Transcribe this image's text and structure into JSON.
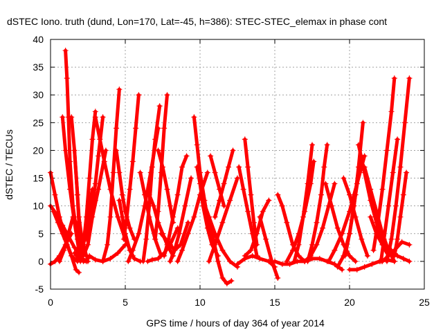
{
  "chart_data": {
    "type": "scatter",
    "title": "dSTEC Iono. truth (dund, Lon=170, Lat=-45, h=386): STEC-STEC_elemax in phase cont",
    "xlabel": "GPS time / hours of day 364 of year 2014",
    "ylabel": "dSTEC  / TECUs",
    "xlim": [
      0,
      25
    ],
    "ylim": [
      -5,
      40
    ],
    "xticks": [
      "0",
      "5",
      "10",
      "15",
      "20",
      "25"
    ],
    "yticks": [
      "-5",
      "0",
      "5",
      "10",
      "15",
      "20",
      "25",
      "30",
      "35",
      "40"
    ],
    "grid": true,
    "legend": "none",
    "marker": "+",
    "color": "#ff0000",
    "series": [
      {
        "x": [
          0.0,
          0.3,
          0.6,
          1.0,
          1.4,
          1.7,
          1.9
        ],
        "y": [
          16,
          12,
          8,
          4,
          1,
          -1.5,
          -2
        ]
      },
      {
        "x": [
          0.0,
          0.4,
          0.8,
          1.2,
          1.6,
          2.1,
          2.5
        ],
        "y": [
          10,
          8.5,
          6.5,
          4.5,
          2.5,
          0.5,
          0
        ]
      },
      {
        "x": [
          0.0,
          0.3,
          0.6,
          1.0,
          1.4
        ],
        "y": [
          -0.5,
          0,
          1,
          3,
          5
        ]
      },
      {
        "x": [
          0.2,
          0.5,
          0.8,
          1.1,
          1.4,
          1.8
        ],
        "y": [
          9,
          7,
          5,
          3,
          1,
          0
        ]
      },
      {
        "x": [
          0.6,
          0.9,
          1.2,
          1.5,
          1.7,
          1.9
        ],
        "y": [
          0,
          2,
          5,
          8,
          7,
          5
        ]
      },
      {
        "x": [
          0.8,
          1.0,
          1.3,
          1.6,
          1.9,
          2.2,
          2.4
        ],
        "y": [
          26,
          20,
          13,
          7,
          2,
          0,
          0
        ]
      },
      {
        "x": [
          1.0,
          1.1,
          1.2,
          1.3,
          1.5,
          1.8,
          2.1
        ],
        "y": [
          38,
          33,
          26,
          18,
          10,
          4,
          1
        ]
      },
      {
        "x": [
          1.4,
          1.6,
          1.8,
          1.9,
          2.1,
          2.4
        ],
        "y": [
          26,
          20,
          12,
          8,
          4,
          1
        ]
      },
      {
        "x": [
          1.6,
          1.8,
          1.9,
          2.0,
          2.2,
          2.5
        ],
        "y": [
          20,
          12,
          7,
          4,
          2,
          0.5
        ]
      },
      {
        "x": [
          1.6,
          1.9,
          2.2,
          2.5,
          2.8,
          3.2,
          3.7
        ],
        "y": [
          1.5,
          0.5,
          1,
          3,
          8,
          13,
          20
        ]
      },
      {
        "x": [
          2.0,
          2.2,
          2.4,
          2.6,
          2.8,
          3.0
        ],
        "y": [
          0,
          3,
          8,
          15,
          22,
          27
        ]
      },
      {
        "x": [
          2.2,
          2.4,
          2.6,
          2.8,
          3.0
        ],
        "y": [
          3,
          6,
          10,
          13,
          11
        ]
      },
      {
        "x": [
          2.4,
          2.6,
          2.8,
          3.0,
          3.2,
          3.5
        ],
        "y": [
          4,
          7,
          10,
          14,
          19,
          26
        ]
      },
      {
        "x": [
          3.0,
          3.3,
          3.6,
          4.0,
          4.5,
          5.0,
          5.5
        ],
        "y": [
          26,
          22,
          18,
          13,
          8,
          4,
          1
        ]
      },
      {
        "x": [
          2.6,
          3.0,
          3.5,
          4.0,
          4.5,
          5.0
        ],
        "y": [
          1,
          0.3,
          0,
          0.5,
          1.5,
          3
        ]
      },
      {
        "x": [
          3.5,
          3.8,
          4.0,
          4.2,
          4.4,
          4.6
        ],
        "y": [
          0,
          3,
          8,
          16,
          24,
          31
        ]
      },
      {
        "x": [
          4.4,
          4.6,
          4.8,
          5.0,
          5.3,
          5.6
        ],
        "y": [
          20,
          16,
          12,
          9,
          6,
          4
        ]
      },
      {
        "x": [
          4.6,
          4.8,
          5.0,
          5.3,
          5.6,
          6.0
        ],
        "y": [
          11,
          8,
          5,
          2,
          0.5,
          0
        ]
      },
      {
        "x": [
          4.9,
          5.1,
          5.3,
          5.5,
          5.7,
          5.9
        ],
        "y": [
          4,
          8,
          13,
          18,
          24,
          30
        ]
      },
      {
        "x": [
          5.2,
          5.5,
          5.9,
          6.3,
          6.7,
          7.2
        ],
        "y": [
          0,
          2,
          5,
          10,
          16,
          24
        ]
      },
      {
        "x": [
          6.0,
          6.3,
          6.6,
          7.0,
          7.4
        ],
        "y": [
          16,
          12,
          8,
          4,
          1
        ]
      },
      {
        "x": [
          6.2,
          6.4,
          6.6,
          6.8,
          7.0,
          7.3
        ],
        "y": [
          0,
          4,
          10,
          17,
          22,
          28
        ]
      },
      {
        "x": [
          6.6,
          6.9,
          7.2,
          7.5,
          7.8,
          8.2
        ],
        "y": [
          12,
          10,
          7,
          5,
          3,
          1
        ]
      },
      {
        "x": [
          6.5,
          6.8,
          7.2,
          7.6,
          8.0,
          8.5
        ],
        "y": [
          0,
          0.3,
          0.5,
          1.5,
          3,
          6
        ]
      },
      {
        "x": [
          7.0,
          7.2,
          7.4,
          7.6,
          7.8
        ],
        "y": [
          4,
          9,
          16,
          24,
          30
        ]
      },
      {
        "x": [
          7.2,
          7.5,
          7.8,
          8.0,
          8.2
        ],
        "y": [
          20,
          17,
          13,
          10,
          7
        ]
      },
      {
        "x": [
          7.4,
          7.7,
          8.0,
          8.3,
          8.7,
          9.2
        ],
        "y": [
          5,
          4,
          3,
          2,
          3,
          7
        ]
      },
      {
        "x": [
          7.6,
          7.9,
          8.2,
          8.5,
          8.8,
          9.1
        ],
        "y": [
          1,
          4,
          8,
          12,
          17,
          19
        ]
      },
      {
        "x": [
          8.0,
          8.3,
          8.6,
          9.0,
          9.4
        ],
        "y": [
          0,
          2,
          5,
          10,
          15
        ]
      },
      {
        "x": [
          8.5,
          8.8,
          9.2,
          9.6,
          10.0,
          10.5
        ],
        "y": [
          0,
          2,
          5,
          8,
          12,
          16
        ]
      },
      {
        "x": [
          9.6,
          9.8,
          10.0,
          10.3,
          10.6,
          11.0
        ],
        "y": [
          26,
          21,
          16,
          11,
          6,
          2
        ]
      },
      {
        "x": [
          9.8,
          10.0,
          10.2,
          10.5,
          10.8,
          11.2
        ],
        "y": [
          17,
          14,
          10,
          6,
          3,
          1
        ]
      },
      {
        "x": [
          10.2,
          10.6,
          11.0,
          11.5,
          12.0,
          12.5
        ],
        "y": [
          11,
          8,
          5,
          2,
          0,
          -1
        ]
      },
      {
        "x": [
          10.6,
          10.9,
          11.2,
          11.5,
          11.8,
          12.1
        ],
        "y": [
          8,
          4,
          0,
          -3,
          -4,
          -3.5
        ]
      },
      {
        "x": [
          10.7,
          11.0,
          11.3,
          11.6
        ],
        "y": [
          19,
          16,
          13,
          10
        ]
      },
      {
        "x": [
          11.0,
          11.3,
          11.6,
          11.9,
          12.2
        ],
        "y": [
          8,
          11,
          14,
          17,
          20
        ]
      },
      {
        "x": [
          10.6,
          11.0,
          11.5,
          12.0,
          12.5
        ],
        "y": [
          0,
          3,
          7,
          11,
          15
        ]
      },
      {
        "x": [
          12.6,
          12.9,
          13.2,
          13.5,
          13.8
        ],
        "y": [
          17,
          13,
          9,
          5,
          1
        ]
      },
      {
        "x": [
          13.0,
          13.2,
          13.4,
          13.6,
          13.8
        ],
        "y": [
          22,
          17,
          12,
          7,
          3
        ]
      },
      {
        "x": [
          13.0,
          13.4,
          13.8,
          14.2,
          14.6
        ],
        "y": [
          1,
          2,
          5,
          9,
          11
        ]
      },
      {
        "x": [
          14.0,
          14.4,
          14.8,
          15.2
        ],
        "y": [
          8,
          4,
          0,
          -3
        ]
      },
      {
        "x": [
          12.5,
          13.0,
          13.5,
          14.0,
          14.6,
          15.0
        ],
        "y": [
          -0.5,
          0.5,
          1,
          0.5,
          0,
          -1
        ]
      },
      {
        "x": [
          15.2,
          15.5,
          15.8,
          16.2,
          16.6,
          17.0
        ],
        "y": [
          12,
          10,
          7,
          3,
          1,
          0
        ]
      },
      {
        "x": [
          15.0,
          15.5,
          16.0,
          16.5,
          17.0
        ],
        "y": [
          0,
          -0.5,
          -0.5,
          0,
          0
        ]
      },
      {
        "x": [
          15.8,
          16.2,
          16.6,
          17.0,
          17.4,
          17.6
        ],
        "y": [
          0,
          2,
          5,
          9,
          14,
          18
        ]
      },
      {
        "x": [
          16.3,
          16.6,
          16.9,
          17.2,
          17.5
        ],
        "y": [
          0,
          3,
          8,
          14,
          21
        ]
      },
      {
        "x": [
          17.0,
          17.4,
          17.8,
          18.2,
          18.6,
          19.0
        ],
        "y": [
          0,
          1,
          3,
          6,
          10,
          14
        ]
      },
      {
        "x": [
          17.2,
          17.5,
          17.8,
          18.1,
          18.3,
          18.5
        ],
        "y": [
          0,
          3,
          7,
          12,
          17,
          21
        ]
      },
      {
        "x": [
          17.0,
          17.5,
          18.0,
          18.5,
          19.0,
          19.5
        ],
        "y": [
          0,
          0.5,
          0.5,
          0,
          -0.5,
          -1.5
        ]
      },
      {
        "x": [
          18.4,
          18.8,
          19.2,
          19.6,
          20.0,
          20.4
        ],
        "y": [
          14,
          10,
          6,
          3,
          1,
          0
        ]
      },
      {
        "x": [
          18.6,
          19.0,
          19.5,
          20.0,
          20.5,
          21.0
        ],
        "y": [
          0,
          2,
          5,
          9,
          14,
          19
        ]
      },
      {
        "x": [
          19.2,
          19.6,
          20.0,
          20.4,
          20.8
        ],
        "y": [
          -1,
          1,
          5,
          12,
          19
        ]
      },
      {
        "x": [
          19.7,
          20.0,
          20.3,
          20.6,
          20.9
        ],
        "y": [
          1,
          5,
          10,
          17,
          25
        ]
      },
      {
        "x": [
          19.6,
          20.0,
          20.4,
          20.8,
          21.2
        ],
        "y": [
          15,
          12,
          8,
          4,
          1
        ]
      },
      {
        "x": [
          20.6,
          21.0,
          21.4,
          21.8,
          22.2,
          22.6
        ],
        "y": [
          21,
          16,
          11,
          7,
          3,
          1
        ]
      },
      {
        "x": [
          21.0,
          21.4,
          21.8,
          22.2,
          22.6,
          23.0
        ],
        "y": [
          17,
          13,
          9,
          5,
          2,
          0
        ]
      },
      {
        "x": [
          21.4,
          21.8,
          22.2,
          22.6,
          23.0
        ],
        "y": [
          8,
          5,
          3,
          2,
          1
        ]
      },
      {
        "x": [
          20.0,
          20.5,
          21.0,
          21.5,
          22.0,
          22.5,
          23.0
        ],
        "y": [
          -1.5,
          -1.5,
          -1,
          -0.5,
          0,
          0.3,
          0
        ]
      },
      {
        "x": [
          21.6,
          21.9,
          22.2,
          22.5,
          22.8,
          23.0
        ],
        "y": [
          2,
          7,
          13,
          20,
          27,
          33
        ]
      },
      {
        "x": [
          22.1,
          22.3,
          22.6,
          22.9,
          23.2
        ],
        "y": [
          0,
          4,
          10,
          16,
          22
        ]
      },
      {
        "x": [
          22.5,
          22.8,
          23.1,
          23.4,
          23.7,
          24.0
        ],
        "y": [
          0,
          4,
          10,
          17,
          25,
          33
        ]
      },
      {
        "x": [
          22.2,
          22.6,
          23.0,
          23.5,
          24.0
        ],
        "y": [
          0,
          1,
          2,
          3.5,
          3
        ]
      },
      {
        "x": [
          23.0,
          23.2,
          23.4,
          23.6,
          23.8
        ],
        "y": [
          1,
          4,
          8,
          12,
          16
        ]
      },
      {
        "x": [
          22.8,
          23.2,
          23.6,
          24.0
        ],
        "y": [
          2,
          1,
          0.5,
          0
        ]
      }
    ]
  }
}
